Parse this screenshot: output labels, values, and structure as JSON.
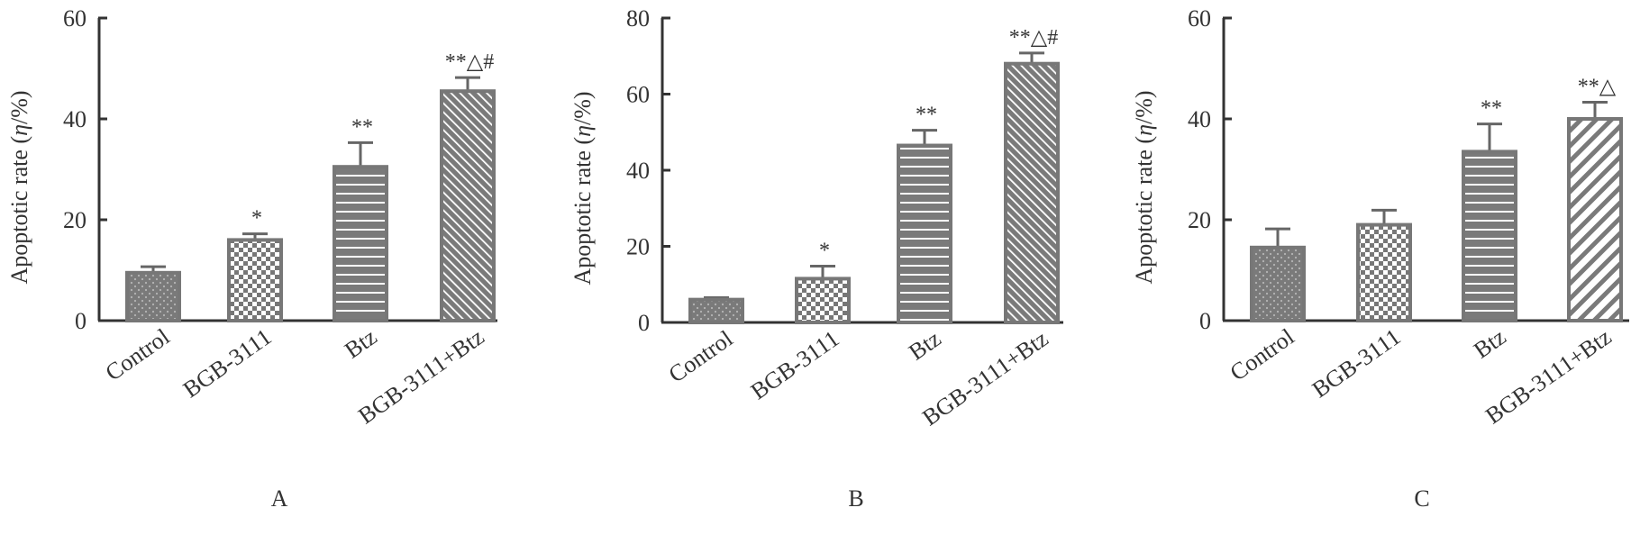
{
  "chart_data": [
    {
      "type": "bar",
      "panel_label": "A",
      "ylabel_prefix": "Apoptotic rate (",
      "ylabel_symbol": "η",
      "ylabel_suffix": "/%)",
      "categories": [
        "Control",
        "BGB-3111",
        "Btz",
        "BGB-3111+Btz"
      ],
      "values": [
        9.5,
        16,
        30.5,
        45.5
      ],
      "errors": [
        1.2,
        1.2,
        4.8,
        2.7
      ],
      "significance": [
        "",
        "*",
        "**",
        "**△#"
      ],
      "ylim": [
        0,
        60
      ],
      "yticks": [
        0,
        20,
        40,
        60
      ],
      "patterns": [
        "dots",
        "checker",
        "hlines",
        "dlines-fine"
      ]
    },
    {
      "type": "bar",
      "panel_label": "B",
      "ylabel_prefix": "Apoptotic rate (",
      "ylabel_symbol": "η",
      "ylabel_suffix": "/%)",
      "categories": [
        "Control",
        "BGB-3111",
        "Btz",
        "BGB-3111+Btz"
      ],
      "values": [
        6,
        11.5,
        46.5,
        68
      ],
      "errors": [
        0.5,
        3.3,
        4,
        2.8
      ],
      "significance": [
        "",
        "*",
        "**",
        "**△#"
      ],
      "ylim": [
        0,
        80
      ],
      "yticks": [
        0,
        20,
        40,
        60,
        80
      ],
      "patterns": [
        "dots",
        "checker",
        "hlines",
        "dlines-fine"
      ]
    },
    {
      "type": "bar",
      "panel_label": "C",
      "ylabel_prefix": "Apoptotic rate (",
      "ylabel_symbol": "η",
      "ylabel_suffix": "/%)",
      "categories": [
        "Control",
        "BGB-3111",
        "Btz",
        "BGB-3111+Btz"
      ],
      "values": [
        14.5,
        19,
        33.5,
        40
      ],
      "errors": [
        3.7,
        2.9,
        5.5,
        3.3
      ],
      "significance": [
        "",
        "",
        "**",
        "**△"
      ],
      "ylim": [
        0,
        60
      ],
      "yticks": [
        0,
        20,
        40,
        60
      ],
      "patterns": [
        "dots",
        "checker",
        "hlines",
        "dlines-wide"
      ]
    }
  ]
}
